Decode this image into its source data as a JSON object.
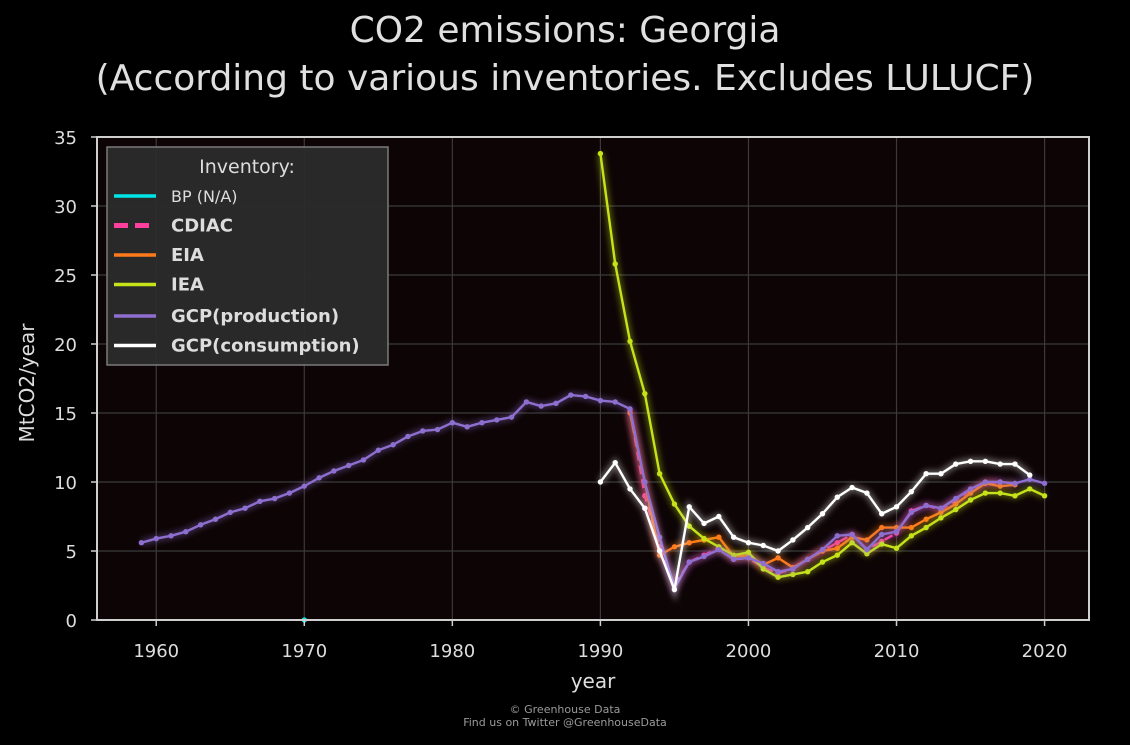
{
  "chart_data": {
    "type": "line",
    "title": "CO2 emissions: Georgia",
    "subtitle": "(According to various inventories. Excludes LULUCF)",
    "xlabel": "year",
    "ylabel": "MtCO2/year",
    "xlim": [
      1956,
      2023
    ],
    "ylim": [
      0,
      35
    ],
    "xticks": [
      1960,
      1970,
      1980,
      1990,
      2000,
      2010,
      2020
    ],
    "yticks": [
      0,
      5,
      10,
      15,
      20,
      25,
      30,
      35
    ],
    "grid": true,
    "legend": {
      "title": "Inventory:",
      "placement": "top-left"
    },
    "series": [
      {
        "name": "BP (N/A)",
        "color": "#00e5e5",
        "style": "solid",
        "bold": false,
        "x": [
          1970
        ],
        "y": [
          0
        ]
      },
      {
        "name": "CDIAC",
        "color": "#ff3fa0",
        "style": "dashed",
        "bold": true,
        "x": [
          1992,
          1993,
          1994,
          1995,
          1996,
          1997,
          1998,
          1999,
          2000,
          2001,
          2002,
          2003,
          2004,
          2005,
          2006,
          2007,
          2008,
          2009,
          2010,
          2011,
          2012,
          2013,
          2014,
          2015,
          2016,
          2017
        ],
        "y": [
          15.2,
          9.0,
          5.3,
          2.5,
          4.2,
          4.7,
          5.2,
          4.4,
          4.5,
          3.8,
          3.4,
          3.7,
          4.4,
          5.0,
          5.6,
          6.2,
          5.1,
          5.7,
          6.3,
          7.9,
          8.3,
          8.0,
          8.7,
          9.4,
          9.9,
          10.0
        ]
      },
      {
        "name": "EIA",
        "color": "#ff7a1a",
        "style": "solid",
        "bold": true,
        "x": [
          1992,
          1993,
          1994,
          1995,
          1996,
          1997,
          1998,
          1999,
          2000,
          2001,
          2002,
          2003,
          2004,
          2005,
          2006,
          2007,
          2008,
          2009,
          2010,
          2011,
          2012,
          2013,
          2014,
          2015,
          2016,
          2017,
          2018
        ],
        "y": [
          15.0,
          10.0,
          4.7,
          5.3,
          5.6,
          5.8,
          6.0,
          4.6,
          4.7,
          4.0,
          4.5,
          3.8,
          4.4,
          5.0,
          5.2,
          6.0,
          5.8,
          6.7,
          6.7,
          6.7,
          7.3,
          7.8,
          8.4,
          9.2,
          9.9,
          9.7,
          9.8
        ]
      },
      {
        "name": "IEA",
        "color": "#c6e31a",
        "style": "solid",
        "bold": true,
        "x": [
          1990,
          1991,
          1992,
          1993,
          1994,
          1995,
          1996,
          1997,
          1998,
          1999,
          2000,
          2001,
          2002,
          2003,
          2004,
          2005,
          2006,
          2007,
          2008,
          2009,
          2010,
          2011,
          2012,
          2013,
          2014,
          2015,
          2016,
          2017,
          2018,
          2019,
          2020
        ],
        "y": [
          33.8,
          25.8,
          20.2,
          16.4,
          10.6,
          8.4,
          6.8,
          5.9,
          5.3,
          4.7,
          4.9,
          3.7,
          3.1,
          3.3,
          3.5,
          4.2,
          4.7,
          5.6,
          4.8,
          5.5,
          5.2,
          6.1,
          6.7,
          7.4,
          8.0,
          8.7,
          9.2,
          9.2,
          9.0,
          9.5,
          9.0
        ]
      },
      {
        "name": "GCP(production)",
        "color": "#8e6fd0",
        "style": "solid",
        "bold": true,
        "x": [
          1959,
          1960,
          1961,
          1962,
          1963,
          1964,
          1965,
          1966,
          1967,
          1968,
          1969,
          1970,
          1971,
          1972,
          1973,
          1974,
          1975,
          1976,
          1977,
          1978,
          1979,
          1980,
          1981,
          1982,
          1983,
          1984,
          1985,
          1986,
          1987,
          1988,
          1989,
          1990,
          1991,
          1992,
          1993,
          1994,
          1995,
          1996,
          1997,
          1998,
          1999,
          2000,
          2001,
          2002,
          2003,
          2004,
          2005,
          2006,
          2007,
          2008,
          2009,
          2010,
          2011,
          2012,
          2013,
          2014,
          2015,
          2016,
          2017,
          2018,
          2019,
          2020
        ],
        "y": [
          5.6,
          5.9,
          6.1,
          6.4,
          6.9,
          7.3,
          7.8,
          8.1,
          8.6,
          8.8,
          9.2,
          9.7,
          10.3,
          10.8,
          11.2,
          11.6,
          12.3,
          12.7,
          13.3,
          13.7,
          13.8,
          14.3,
          14.0,
          14.3,
          14.5,
          14.7,
          15.8,
          15.5,
          15.7,
          16.3,
          16.2,
          15.9,
          15.8,
          15.3,
          10.0,
          6.0,
          2.3,
          4.2,
          4.6,
          5.1,
          4.4,
          4.5,
          4.1,
          3.5,
          3.7,
          4.4,
          5.1,
          6.1,
          6.2,
          5.1,
          6.2,
          6.4,
          7.8,
          8.3,
          8.1,
          8.8,
          9.5,
          10.0,
          10.0,
          9.9,
          10.2,
          9.9
        ]
      },
      {
        "name": "GCP(consumption)",
        "color": "#ffffff",
        "style": "solid",
        "bold": true,
        "x": [
          1990,
          1991,
          1992,
          1993,
          1994,
          1995,
          1996,
          1997,
          1998,
          1999,
          2000,
          2001,
          2002,
          2003,
          2004,
          2005,
          2006,
          2007,
          2008,
          2009,
          2010,
          2011,
          2012,
          2013,
          2014,
          2015,
          2016,
          2017,
          2018,
          2019
        ],
        "y": [
          10.0,
          11.4,
          9.5,
          8.1,
          5.0,
          2.2,
          8.2,
          7.0,
          7.5,
          6.0,
          5.6,
          5.4,
          5.0,
          5.8,
          6.7,
          7.7,
          8.9,
          9.6,
          9.2,
          7.7,
          8.2,
          9.3,
          10.6,
          10.6,
          11.3,
          11.5,
          11.5,
          11.3,
          11.3,
          10.5
        ]
      }
    ]
  },
  "credit": {
    "line1": "© Greenhouse Data",
    "line2": "Find us on Twitter @GreenhouseData"
  }
}
